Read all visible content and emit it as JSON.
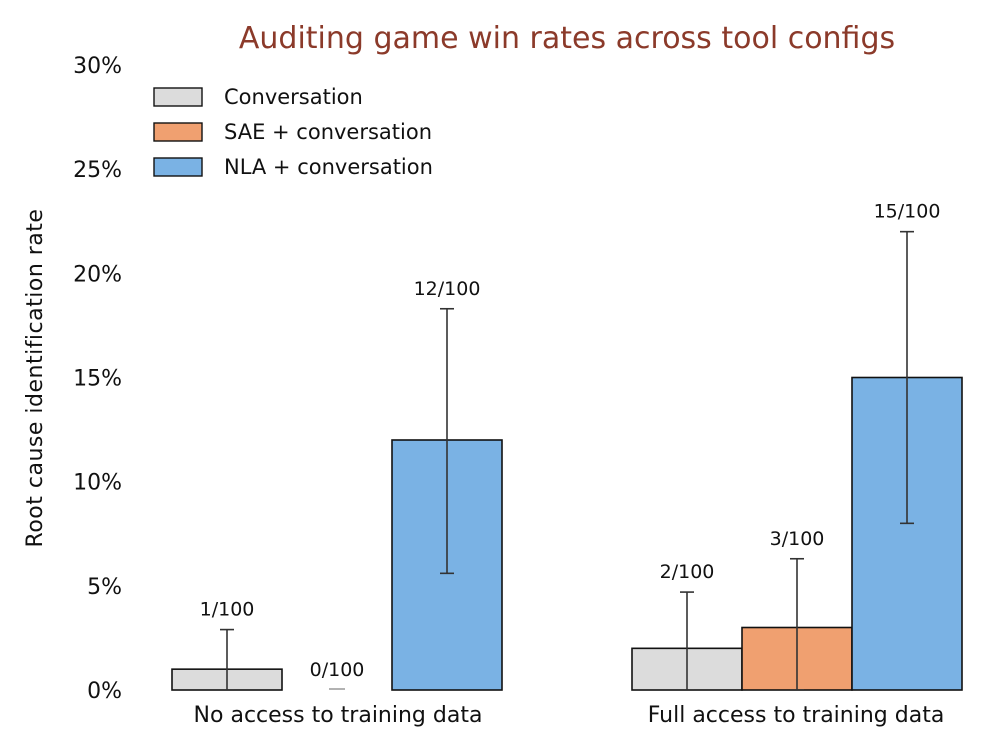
{
  "chart_data": {
    "type": "bar",
    "title": "Auditing game win rates across tool configs",
    "xlabel": "",
    "ylabel": "Root cause identification rate",
    "ylim": [
      0,
      30
    ],
    "y_ticks": [
      "0%",
      "5%",
      "10%",
      "15%",
      "20%",
      "25%",
      "30%"
    ],
    "y_tick_values": [
      0,
      5,
      10,
      15,
      20,
      25,
      30
    ],
    "categories": [
      "No access to training data",
      "Full access to training data"
    ],
    "series": [
      {
        "name": "Conversation",
        "color": "#dcdcdc",
        "values": [
          1,
          2
        ],
        "error_low": [
          0,
          0
        ],
        "error_high": [
          2.9,
          4.7
        ],
        "labels": [
          "1/100",
          "2/100"
        ]
      },
      {
        "name": "SAE + conversation",
        "color": "#f0a070",
        "values": [
          0,
          3
        ],
        "error_low": [
          0,
          0
        ],
        "error_high": [
          0,
          6.3
        ],
        "labels": [
          "0/100",
          "3/100"
        ]
      },
      {
        "name": "NLA + conversation",
        "color": "#7ab2e4",
        "values": [
          12,
          15
        ],
        "error_low": [
          5.6,
          8
        ],
        "error_high": [
          18.3,
          22
        ],
        "labels": [
          "12/100",
          "15/100"
        ]
      }
    ],
    "legend_position": "top-left",
    "grid": false,
    "colors": {
      "title": "#8b3a2a",
      "axis": "#111111",
      "error_bar": "#333333",
      "bar_edge": "#111111"
    }
  }
}
